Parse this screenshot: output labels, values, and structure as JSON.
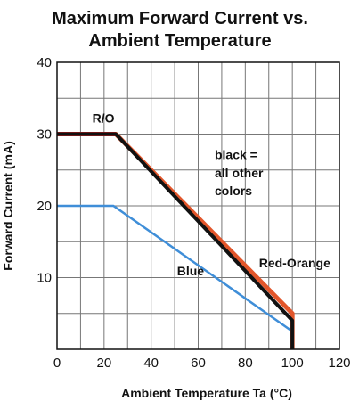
{
  "chart_data": {
    "type": "line",
    "title_lines": [
      "Maximum Forward Current vs.",
      "Ambient Temperature"
    ],
    "xlabel": "Ambient Temperature Ta (°C)",
    "ylabel": "Forward Current (mA)",
    "xlim": [
      0,
      120
    ],
    "ylim": [
      0,
      40
    ],
    "xticks": [
      0,
      20,
      40,
      60,
      80,
      100,
      120
    ],
    "yticks": [
      10,
      20,
      30,
      40
    ],
    "grid": true,
    "series": [
      {
        "name": "Red-Orange",
        "color": "#e2562b",
        "points": [
          [
            0,
            30
          ],
          [
            25,
            30
          ],
          [
            100,
            5
          ],
          [
            100,
            0
          ]
        ]
      },
      {
        "name": "R/O",
        "color": "#c81e1e",
        "points": [
          [
            0,
            30
          ],
          [
            25,
            30
          ]
        ]
      },
      {
        "name": "black = all other colors",
        "color": "#111111",
        "points": [
          [
            0,
            30
          ],
          [
            25,
            30
          ],
          [
            100,
            4
          ],
          [
            100,
            0
          ]
        ]
      },
      {
        "name": "Blue",
        "color": "#3f8ed8",
        "points": [
          [
            0,
            20
          ],
          [
            24,
            20
          ],
          [
            100,
            2.5
          ],
          [
            100,
            0
          ]
        ]
      }
    ],
    "annotations": [
      {
        "text": "R/O",
        "x": 15,
        "y": 31.6
      },
      {
        "text": "black =",
        "x": 67,
        "y": 26.5
      },
      {
        "text": "all other",
        "x": 67,
        "y": 24
      },
      {
        "text": "colors",
        "x": 67,
        "y": 21.5
      },
      {
        "text": "Blue",
        "x": 51,
        "y": 10.3
      },
      {
        "text": "Red-Orange",
        "x": 101,
        "y": 11.4
      }
    ]
  }
}
